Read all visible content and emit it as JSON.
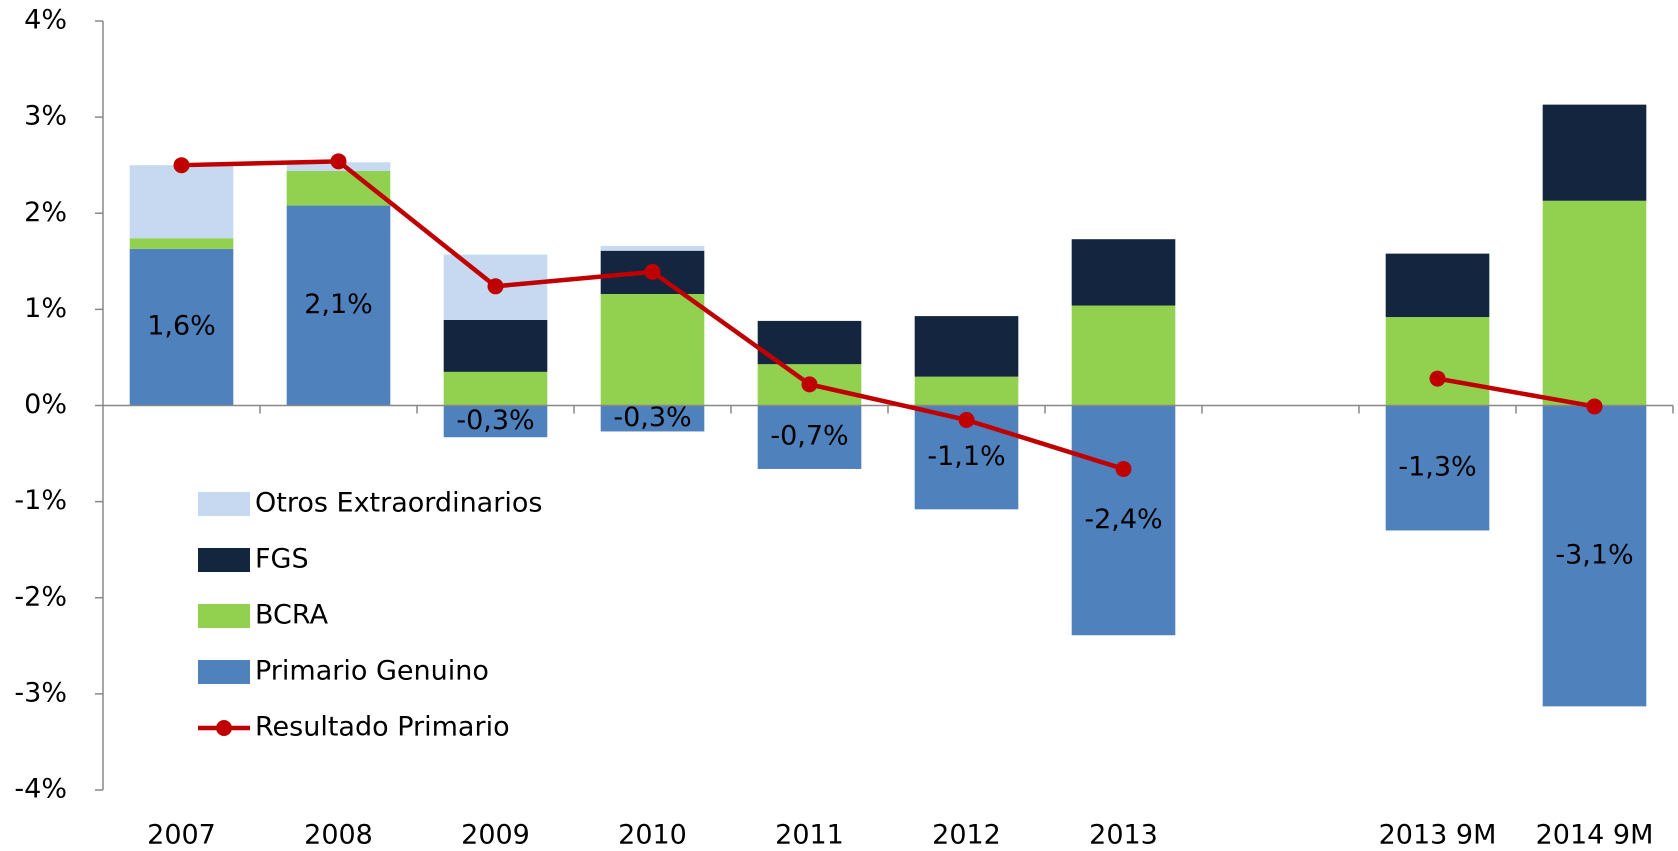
{
  "chart_data": {
    "type": "bar",
    "stacked": true,
    "categories": [
      "2007",
      "2008",
      "2009",
      "2010",
      "2011",
      "2012",
      "2013",
      null,
      "2013 9M",
      "2014 9M"
    ],
    "series": [
      {
        "name": "Otros Extraordinarios",
        "type": "bar",
        "color": "#c6d9f1",
        "values": [
          0.76,
          0.09,
          0.68,
          0.05,
          0,
          0,
          0,
          null,
          0,
          0
        ]
      },
      {
        "name": "FGS",
        "type": "bar",
        "color": "#13253f",
        "values": [
          0,
          0,
          0.54,
          0.45,
          0.45,
          0.63,
          0.69,
          null,
          0.66,
          1.0
        ]
      },
      {
        "name": "BCRA",
        "type": "bar",
        "color": "#92d050",
        "values": [
          0.11,
          0.36,
          0.35,
          1.16,
          0.43,
          0.3,
          1.04,
          null,
          0.92,
          2.13
        ]
      },
      {
        "name": "Primario Genuino",
        "type": "bar",
        "color": "#4f81bd",
        "values": [
          1.63,
          2.08,
          -0.33,
          -0.27,
          -0.66,
          -1.08,
          -2.39,
          null,
          -1.3,
          -3.13
        ],
        "value_labels": [
          "1,6%",
          "2,1%",
          "-0,3%",
          "-0,3%",
          "-0,7%",
          "-1,1%",
          "-2,4%",
          null,
          "-1,3%",
          "-3,1%"
        ]
      },
      {
        "name": "Resultado Primario",
        "type": "line",
        "color": "#c00000",
        "values": [
          2.5,
          2.54,
          1.24,
          1.39,
          0.22,
          -0.15,
          -0.66,
          null,
          0.28,
          -0.01
        ]
      }
    ],
    "ylim": [
      -4,
      4
    ],
    "yticks": [
      {
        "value": -4,
        "label": "-4%"
      },
      {
        "value": -3,
        "label": "-3%"
      },
      {
        "value": -2,
        "label": "-2%"
      },
      {
        "value": -1,
        "label": "-1%"
      },
      {
        "value": 0,
        "label": "0%"
      },
      {
        "value": 1,
        "label": "1%"
      },
      {
        "value": 2,
        "label": "2%"
      },
      {
        "value": 3,
        "label": "3%"
      },
      {
        "value": 4,
        "label": "4%"
      }
    ],
    "legend": "lower left",
    "grid": false
  }
}
